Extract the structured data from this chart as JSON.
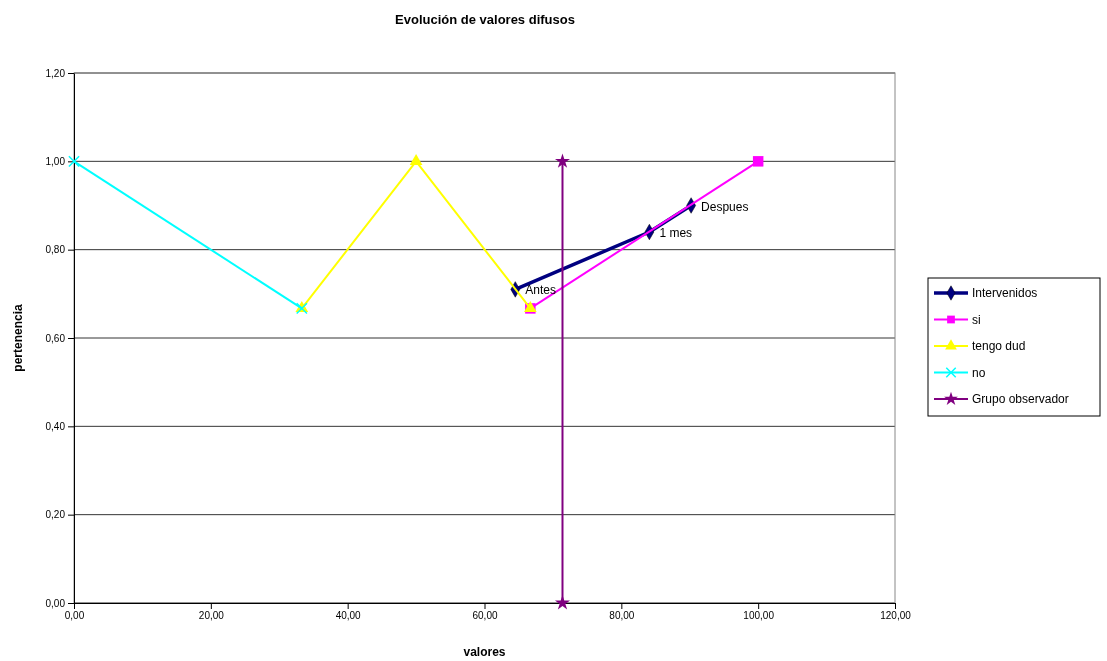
{
  "chart_data": {
    "type": "line",
    "title": "Evolución de valores difusos",
    "xlabel": "valores",
    "ylabel": "pertenencia",
    "xlim": [
      0,
      120
    ],
    "ylim": [
      0,
      1.2
    ],
    "xticks": [
      {
        "value": 0,
        "label": "0,00"
      },
      {
        "value": 20,
        "label": "20,00"
      },
      {
        "value": 40,
        "label": "40,00"
      },
      {
        "value": 60,
        "label": "60,00"
      },
      {
        "value": 80,
        "label": "80,00"
      },
      {
        "value": 100,
        "label": "100,00"
      },
      {
        "value": 120,
        "label": "120,00"
      }
    ],
    "yticks": [
      {
        "value": 0,
        "label": "0,00"
      },
      {
        "value": 0.2,
        "label": "0,20"
      },
      {
        "value": 0.4,
        "label": "0,40"
      },
      {
        "value": 0.6,
        "label": "0,60"
      },
      {
        "value": 0.8,
        "label": "0,80"
      },
      {
        "value": 1,
        "label": "1,00"
      },
      {
        "value": 1.2,
        "label": "1,20"
      }
    ],
    "grid": "y",
    "legend": "right",
    "series": [
      {
        "name": "Intervenidos",
        "color": "#000080",
        "marker": "diamond",
        "x": [
          64.5,
          84.1,
          90.2
        ],
        "values": [
          0.71,
          0.84,
          0.9
        ]
      },
      {
        "name": "si",
        "color": "#ff00ff",
        "marker": "square",
        "x": [
          66.7,
          100
        ],
        "values": [
          0.667,
          1
        ]
      },
      {
        "name": "tengo dud",
        "color": "#ffff00",
        "marker": "triangle",
        "x": [
          33.3,
          50,
          66.7
        ],
        "values": [
          0.667,
          1,
          0.667
        ]
      },
      {
        "name": "no",
        "color": "#00ffff",
        "marker": "cross",
        "x": [
          0,
          33.3
        ],
        "values": [
          1,
          0.667
        ]
      },
      {
        "name": "Grupo observador",
        "color": "#800080",
        "marker": "star",
        "x": [
          71.4,
          71.4
        ],
        "values": [
          1,
          0
        ]
      }
    ],
    "annotations": [
      {
        "text": "Antes",
        "x": 64.5,
        "y": 0.71
      },
      {
        "text": "1 mes",
        "x": 84.1,
        "y": 0.84
      },
      {
        "text": "Despues",
        "x": 90.2,
        "y": 0.9
      }
    ]
  }
}
